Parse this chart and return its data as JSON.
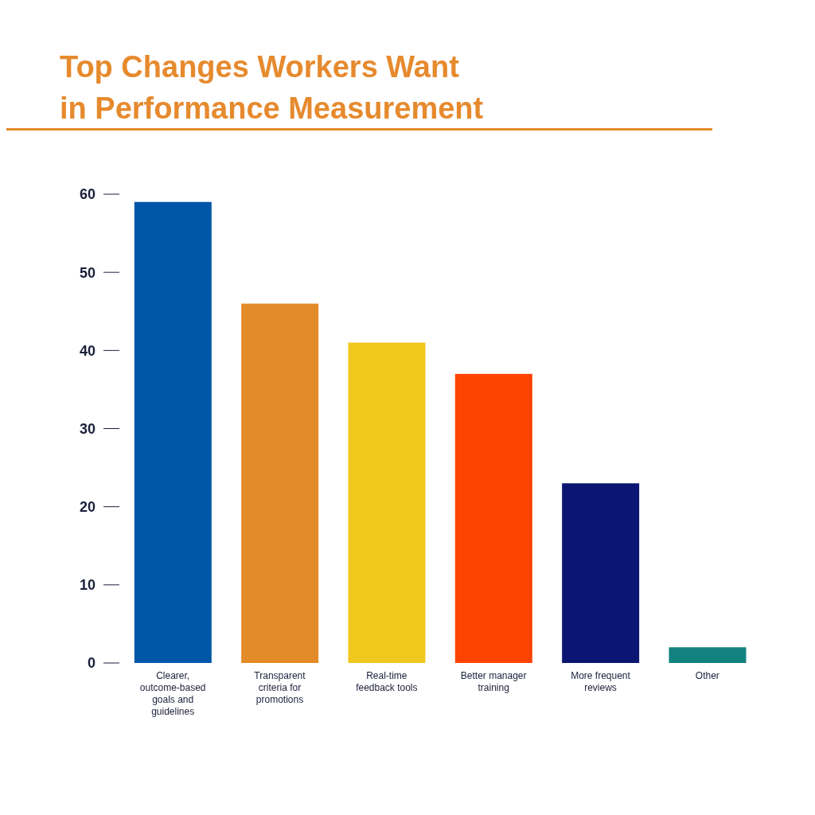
{
  "chart_data": {
    "type": "bar",
    "title": "Top Changes Workers Want\nin Performance Measurement",
    "categories": [
      "Clearer, outcome-based goals and guidelines",
      "Transparent criteria for promotions",
      "Real-time feedback tools",
      "Better manager training",
      "More frequent reviews",
      "Other"
    ],
    "values": [
      59,
      46,
      41,
      37,
      23,
      2
    ],
    "colors": [
      "#0057a8",
      "#e38b28",
      "#f0c81e",
      "#fd4401",
      "#0b1672",
      "#12827f"
    ],
    "ylim": [
      0,
      60
    ],
    "yticks": [
      0,
      10,
      20,
      30,
      40,
      50,
      60
    ],
    "grid": false,
    "legend": false
  }
}
